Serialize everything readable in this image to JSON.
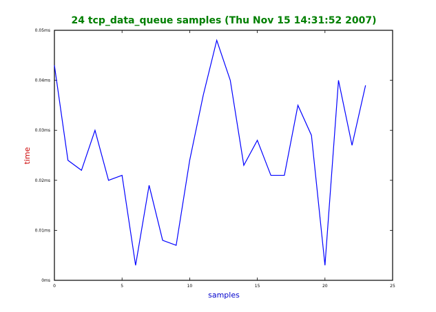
{
  "chart_data": {
    "type": "line",
    "title": "24 tcp_data_queue samples (Thu Nov 15 14:31:52 2007)",
    "xlabel": "samples",
    "ylabel": "time",
    "xlim": [
      0,
      25
    ],
    "ylim": [
      0,
      0.05
    ],
    "x_ticks": [
      0,
      5,
      10,
      15,
      20,
      25
    ],
    "x_tick_labels": [
      "0",
      "5",
      "10",
      "15",
      "20",
      "25"
    ],
    "y_ticks": [
      0,
      0.01,
      0.02,
      0.03,
      0.04,
      0.05
    ],
    "y_tick_labels": [
      "0ms",
      "0.01ms",
      "0.02ms",
      "0.03ms",
      "0.04ms",
      "0.05ms"
    ],
    "grid": false,
    "series": [
      {
        "x": [
          0,
          1,
          2,
          3,
          4,
          5,
          6,
          7,
          8,
          9,
          10,
          11,
          12,
          13,
          14,
          15,
          16,
          17,
          18,
          19,
          20,
          21,
          22,
          23
        ],
        "values": [
          0.043,
          0.024,
          0.022,
          0.03,
          0.02,
          0.021,
          0.003,
          0.019,
          0.008,
          0.007,
          0.024,
          0.037,
          0.048,
          0.04,
          0.023,
          0.028,
          0.021,
          0.021,
          0.035,
          0.029,
          0.003,
          0.04,
          0.027,
          0.039
        ],
        "color": "#0000ff"
      }
    ],
    "colors": {
      "title": "#007f00",
      "xlabel": "#0000cc",
      "ylabel": "#cc0000",
      "line": "#0000ff"
    }
  }
}
